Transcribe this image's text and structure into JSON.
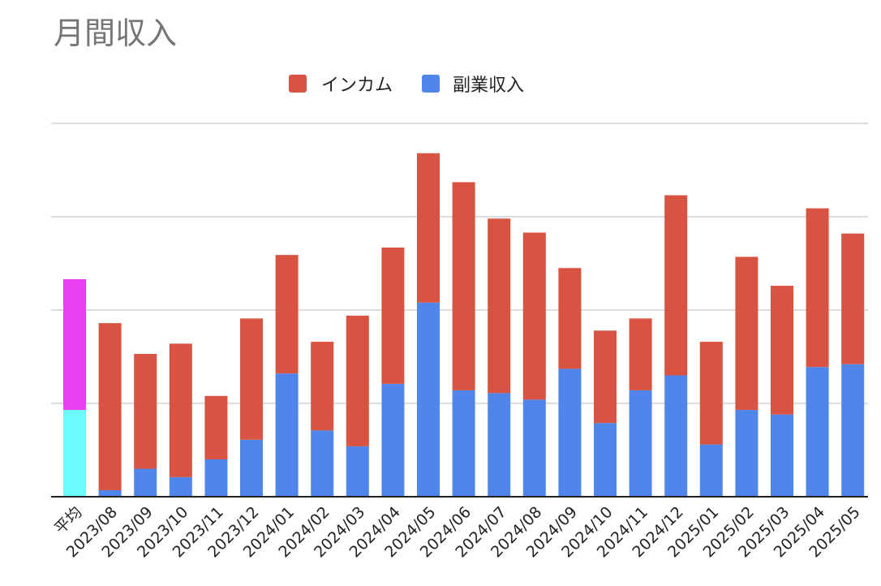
{
  "chart_data": {
    "type": "bar",
    "stacked": true,
    "title": "月間収入",
    "categories": [
      "平均",
      "2023/08",
      "2023/09",
      "2023/10",
      "2023/11",
      "2023/12",
      "2024/01",
      "2024/02",
      "2024/03",
      "2024/04",
      "2024/05",
      "2024/06",
      "2024/07",
      "2024/08",
      "2024/09",
      "2024/10",
      "2024/11",
      "2024/12",
      "2025/01",
      "2025/02",
      "2025/03",
      "2025/04",
      "2025/05"
    ],
    "series": [
      {
        "name": "副業収入",
        "color": "#5086ec",
        "values": [
          0.93,
          0.07,
          0.3,
          0.21,
          0.4,
          0.61,
          1.32,
          0.71,
          0.54,
          1.21,
          2.08,
          1.14,
          1.11,
          1.04,
          1.37,
          0.79,
          1.14,
          1.3,
          0.56,
          0.93,
          0.88,
          1.39,
          1.42
        ]
      },
      {
        "name": "インカム",
        "color": "#d95342",
        "values": [
          1.4,
          1.79,
          1.23,
          1.43,
          0.68,
          1.3,
          1.27,
          0.95,
          1.4,
          1.46,
          1.6,
          2.23,
          1.87,
          1.79,
          1.08,
          0.99,
          0.77,
          1.93,
          1.1,
          1.64,
          1.38,
          1.7,
          1.4
        ]
      }
    ],
    "average_bar_colors": [
      "#6dfcfc",
      "#e83ff0"
    ],
    "y_range": [
      0,
      4
    ],
    "y_ticks_shown": false,
    "grid": true,
    "legend_position": "top-center",
    "xlabel": "",
    "ylabel": ""
  }
}
